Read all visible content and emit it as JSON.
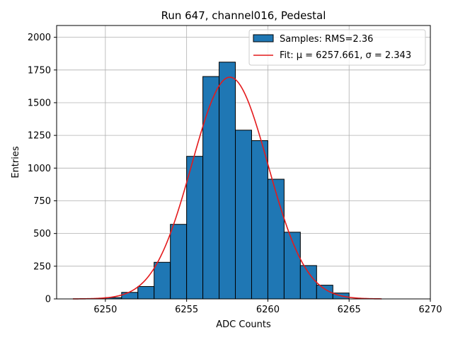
{
  "chart_data": {
    "type": "bar",
    "title": "Run 647, channel016, Pedestal",
    "xlabel": "ADC Counts",
    "ylabel": "Entries",
    "xlim": [
      6247,
      6270
    ],
    "ylim": [
      0,
      2090
    ],
    "xticks": [
      6250,
      6255,
      6260,
      6265,
      6270
    ],
    "yticks": [
      0,
      250,
      500,
      750,
      1000,
      1250,
      1500,
      1750,
      2000
    ],
    "grid": true,
    "legend_position": "top-right",
    "bin_width": 1,
    "histogram": {
      "name": "Samples: RMS=2.36",
      "color": "#1f77b4",
      "bin_edges": [
        6250,
        6251,
        6252,
        6253,
        6254,
        6255,
        6256,
        6257,
        6258,
        6259,
        6260,
        6261,
        6262,
        6263,
        6264
      ],
      "values": [
        10,
        50,
        95,
        280,
        570,
        1090,
        1700,
        1810,
        1290,
        1210,
        915,
        510,
        255,
        105,
        45
      ]
    },
    "fit": {
      "name": "Fit: μ = 6257.661, σ = 2.343",
      "color": "#e41a1c",
      "mu": 6257.661,
      "sigma": 2.343,
      "amplitude": 1695,
      "x_range": [
        6248,
        6267
      ]
    }
  }
}
